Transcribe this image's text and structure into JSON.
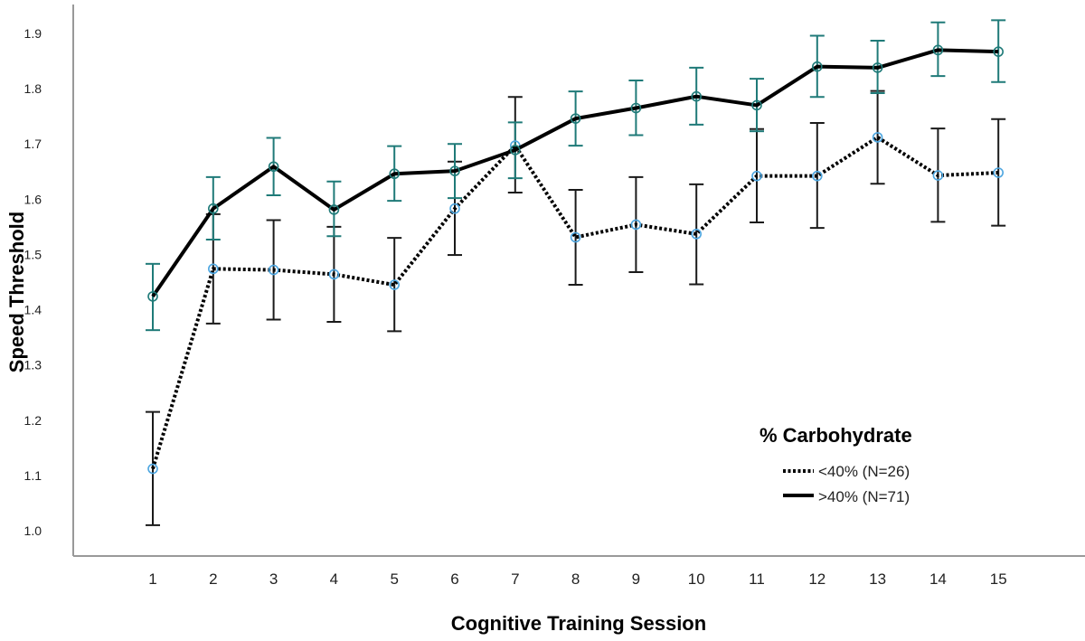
{
  "chart_data": {
    "type": "line",
    "xlabel": "Cognitive Training Session",
    "ylabel": "Speed Threshold",
    "x": [
      1,
      2,
      3,
      4,
      5,
      6,
      7,
      8,
      9,
      10,
      11,
      12,
      13,
      14,
      15
    ],
    "ylim": [
      1.0,
      1.9
    ],
    "yticks": [
      "1.0",
      "1.1",
      "1.2",
      "1.3",
      "1.4",
      "1.5",
      "1.6",
      "1.7",
      "1.8",
      "1.9"
    ],
    "xticks": [
      "1",
      "2",
      "3",
      "4",
      "5",
      "6",
      "7",
      "8",
      "9",
      "10",
      "11",
      "12",
      "13",
      "14",
      "15"
    ],
    "grid": false,
    "legend": {
      "title": "% Carbohydrate",
      "placement": "bottom-right"
    },
    "series": [
      {
        "name": "<40% (N=26)",
        "style": "dotted",
        "line_color": "#000000",
        "marker_color": "#4da6e0",
        "errorbar_color": "#1a1a1a",
        "values": [
          1.112,
          1.474,
          1.472,
          1.464,
          1.445,
          1.583,
          1.697,
          1.531,
          1.554,
          1.537,
          1.642,
          1.642,
          1.712,
          1.643,
          1.648
        ],
        "lower": [
          1.01,
          1.375,
          1.382,
          1.378,
          1.361,
          1.499,
          1.612,
          1.445,
          1.468,
          1.446,
          1.558,
          1.548,
          1.628,
          1.559,
          1.552
        ],
        "upper": [
          1.215,
          1.573,
          1.562,
          1.55,
          1.53,
          1.668,
          1.785,
          1.617,
          1.64,
          1.627,
          1.727,
          1.738,
          1.796,
          1.728,
          1.745
        ]
      },
      {
        "name": ">40% (N=71)",
        "style": "solid",
        "line_color": "#000000",
        "marker_color": "#1f7a78",
        "errorbar_color": "#1f7a78",
        "values": [
          1.424,
          1.583,
          1.659,
          1.581,
          1.646,
          1.651,
          1.689,
          1.746,
          1.765,
          1.786,
          1.77,
          1.84,
          1.838,
          1.87,
          1.867
        ],
        "lower": [
          1.363,
          1.527,
          1.607,
          1.533,
          1.597,
          1.602,
          1.638,
          1.697,
          1.716,
          1.735,
          1.723,
          1.785,
          1.792,
          1.823,
          1.812
        ],
        "upper": [
          1.483,
          1.64,
          1.711,
          1.632,
          1.696,
          1.7,
          1.739,
          1.795,
          1.815,
          1.838,
          1.818,
          1.896,
          1.887,
          1.92,
          1.924
        ]
      }
    ]
  }
}
